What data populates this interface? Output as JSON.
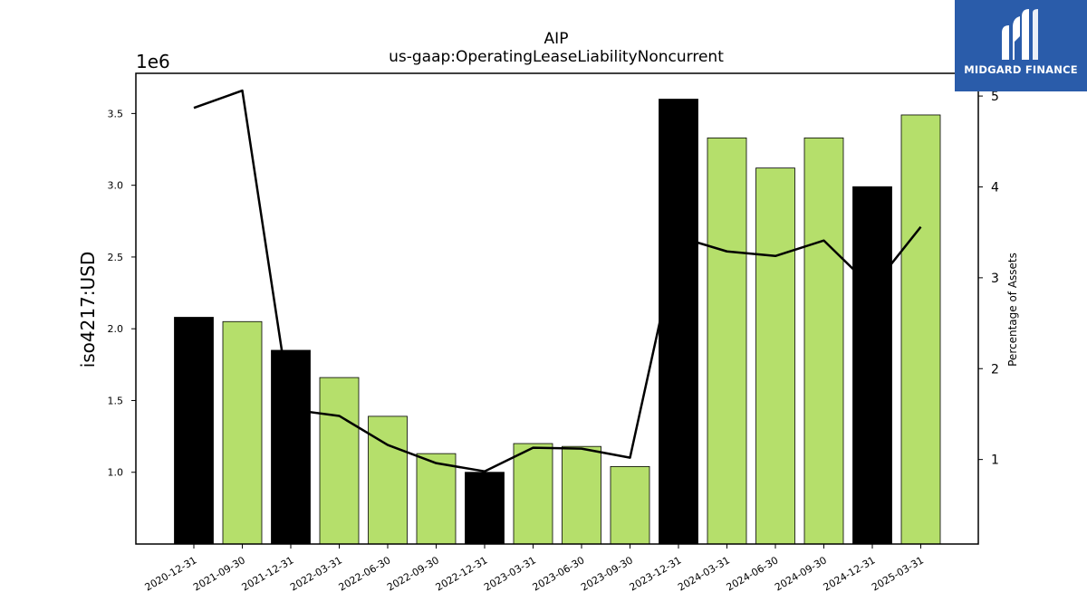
{
  "logo": {
    "text": "MIDGARD FINANCE",
    "icon": "midgard-m-logo-icon",
    "bg_color": "#2a5caa"
  },
  "chart_data": {
    "type": "bar",
    "title": "AIP",
    "subtitle": "us-gaap:OperatingLeaseLiabilityNoncurrent",
    "ylabel": "iso4217:USD",
    "ylabel_right": "Percentage of Assets",
    "y_scale_label": "1e6",
    "ylim": [
      0.5,
      3.78
    ],
    "y_ticks": [
      1.0,
      1.5,
      2.0,
      2.5,
      3.0,
      3.5
    ],
    "y_tick_labels": [
      "1.0",
      "1.5",
      "2.0",
      "2.5",
      "3.0",
      "3.5"
    ],
    "ylim_right": [
      0.07,
      5.25
    ],
    "y_ticks_right": [
      1,
      2,
      3,
      4,
      5
    ],
    "y_tick_labels_right": [
      "1",
      "2",
      "3",
      "4",
      "5"
    ],
    "categories": [
      "2020-12-31",
      "2021-09-30",
      "2021-12-31",
      "2022-03-31",
      "2022-06-30",
      "2022-09-30",
      "2022-12-31",
      "2023-03-31",
      "2023-06-30",
      "2023-09-30",
      "2023-12-31",
      "2024-03-31",
      "2024-06-30",
      "2024-09-30",
      "2024-12-31",
      "2025-03-31"
    ],
    "series": [
      {
        "type": "bar",
        "values": [
          2.08,
          2.05,
          1.85,
          1.66,
          1.39,
          1.13,
          1.0,
          1.2,
          1.18,
          1.04,
          3.6,
          3.33,
          3.12,
          3.33,
          2.99,
          3.49
        ],
        "colors": [
          "#000000",
          "#b5df6b",
          "#000000",
          "#b5df6b",
          "#b5df6b",
          "#b5df6b",
          "#000000",
          "#b5df6b",
          "#b5df6b",
          "#b5df6b",
          "#000000",
          "#b5df6b",
          "#b5df6b",
          "#b5df6b",
          "#000000",
          "#b5df6b"
        ]
      },
      {
        "type": "line",
        "axis": "right",
        "values": [
          4.87,
          5.06,
          1.55,
          1.48,
          1.16,
          0.96,
          0.87,
          1.13,
          1.12,
          1.02,
          3.45,
          3.29,
          3.24,
          3.41,
          2.89,
          3.56
        ],
        "color": "#000000"
      }
    ],
    "grid": false,
    "legend": "none"
  }
}
